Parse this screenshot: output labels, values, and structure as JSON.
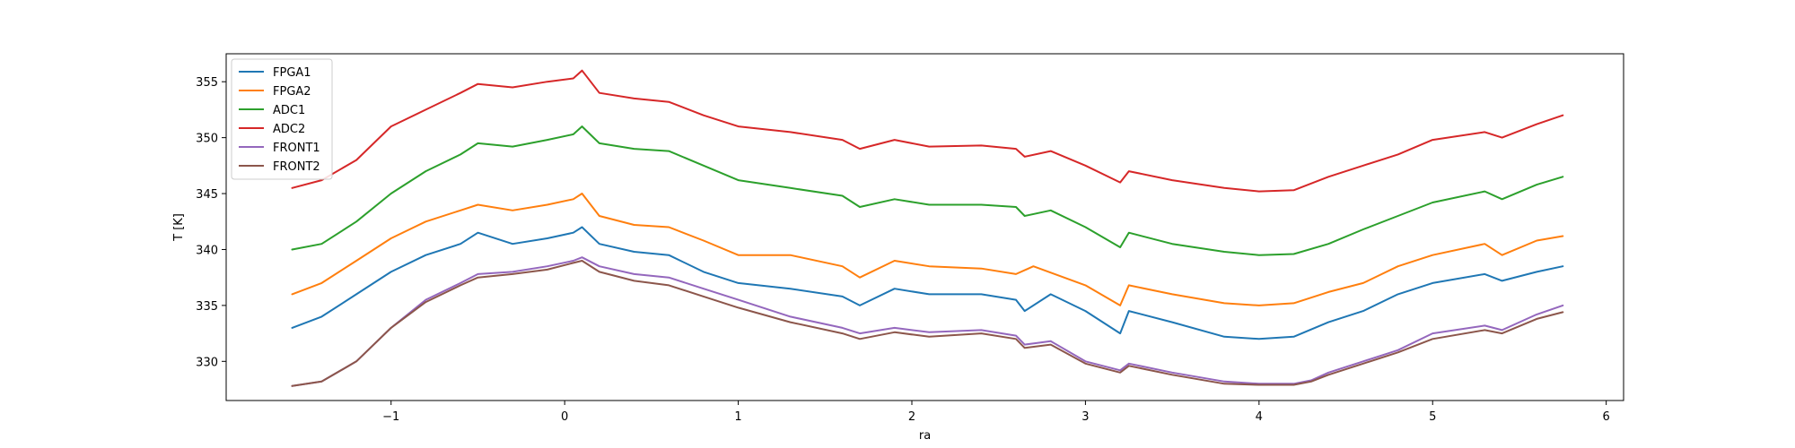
{
  "chart_data": {
    "type": "line",
    "title": "",
    "xlabel": "ra",
    "ylabel": "T [K]",
    "xlim": [
      -1.95,
      6.1
    ],
    "ylim": [
      326.5,
      357.5
    ],
    "xticks": [
      -1,
      0,
      1,
      2,
      3,
      4,
      5,
      6
    ],
    "yticks": [
      330,
      335,
      340,
      345,
      350,
      355
    ],
    "grid": false,
    "legend_position": "top-left",
    "series": [
      {
        "name": "FPGA1",
        "color": "#1f77b4",
        "points": [
          [
            -1.57,
            333.0
          ],
          [
            -1.4,
            334.0
          ],
          [
            -1.2,
            336.0
          ],
          [
            -1.0,
            338.0
          ],
          [
            -0.8,
            339.5
          ],
          [
            -0.6,
            340.5
          ],
          [
            -0.5,
            341.5
          ],
          [
            -0.3,
            340.5
          ],
          [
            -0.1,
            341.0
          ],
          [
            0.05,
            341.5
          ],
          [
            0.1,
            342.0
          ],
          [
            0.2,
            340.5
          ],
          [
            0.4,
            339.8
          ],
          [
            0.6,
            339.5
          ],
          [
            0.8,
            338.0
          ],
          [
            1.0,
            337.0
          ],
          [
            1.3,
            336.5
          ],
          [
            1.6,
            335.8
          ],
          [
            1.7,
            335.0
          ],
          [
            1.9,
            336.5
          ],
          [
            2.1,
            336.0
          ],
          [
            2.4,
            336.0
          ],
          [
            2.6,
            335.5
          ],
          [
            2.65,
            334.5
          ],
          [
            2.8,
            336.0
          ],
          [
            3.0,
            334.5
          ],
          [
            3.2,
            332.5
          ],
          [
            3.25,
            334.5
          ],
          [
            3.5,
            333.5
          ],
          [
            3.8,
            332.2
          ],
          [
            4.0,
            332.0
          ],
          [
            4.2,
            332.2
          ],
          [
            4.4,
            333.5
          ],
          [
            4.6,
            334.5
          ],
          [
            4.8,
            336.0
          ],
          [
            5.0,
            337.0
          ],
          [
            5.3,
            337.8
          ],
          [
            5.4,
            337.2
          ],
          [
            5.6,
            338.0
          ],
          [
            5.75,
            338.5
          ]
        ]
      },
      {
        "name": "FPGA2",
        "color": "#ff7f0e",
        "points": [
          [
            -1.57,
            336.0
          ],
          [
            -1.4,
            337.0
          ],
          [
            -1.2,
            339.0
          ],
          [
            -1.0,
            341.0
          ],
          [
            -0.8,
            342.5
          ],
          [
            -0.6,
            343.5
          ],
          [
            -0.5,
            344.0
          ],
          [
            -0.3,
            343.5
          ],
          [
            -0.1,
            344.0
          ],
          [
            0.05,
            344.5
          ],
          [
            0.1,
            345.0
          ],
          [
            0.2,
            343.0
          ],
          [
            0.4,
            342.2
          ],
          [
            0.6,
            342.0
          ],
          [
            0.8,
            340.8
          ],
          [
            1.0,
            339.5
          ],
          [
            1.3,
            339.5
          ],
          [
            1.6,
            338.5
          ],
          [
            1.7,
            337.5
          ],
          [
            1.9,
            339.0
          ],
          [
            2.1,
            338.5
          ],
          [
            2.4,
            338.3
          ],
          [
            2.6,
            337.8
          ],
          [
            2.7,
            338.5
          ],
          [
            3.0,
            336.8
          ],
          [
            3.2,
            335.0
          ],
          [
            3.25,
            336.8
          ],
          [
            3.5,
            336.0
          ],
          [
            3.8,
            335.2
          ],
          [
            4.0,
            335.0
          ],
          [
            4.2,
            335.2
          ],
          [
            4.4,
            336.2
          ],
          [
            4.6,
            337.0
          ],
          [
            4.8,
            338.5
          ],
          [
            5.0,
            339.5
          ],
          [
            5.3,
            340.5
          ],
          [
            5.4,
            339.5
          ],
          [
            5.6,
            340.8
          ],
          [
            5.75,
            341.2
          ]
        ]
      },
      {
        "name": "ADC1",
        "color": "#2ca02c",
        "points": [
          [
            -1.57,
            340.0
          ],
          [
            -1.4,
            340.5
          ],
          [
            -1.2,
            342.5
          ],
          [
            -1.0,
            345.0
          ],
          [
            -0.8,
            347.0
          ],
          [
            -0.6,
            348.5
          ],
          [
            -0.5,
            349.5
          ],
          [
            -0.3,
            349.2
          ],
          [
            -0.1,
            349.8
          ],
          [
            0.05,
            350.3
          ],
          [
            0.1,
            351.0
          ],
          [
            0.2,
            349.5
          ],
          [
            0.4,
            349.0
          ],
          [
            0.6,
            348.8
          ],
          [
            0.8,
            347.5
          ],
          [
            1.0,
            346.2
          ],
          [
            1.3,
            345.5
          ],
          [
            1.6,
            344.8
          ],
          [
            1.7,
            343.8
          ],
          [
            1.9,
            344.5
          ],
          [
            2.1,
            344.0
          ],
          [
            2.4,
            344.0
          ],
          [
            2.6,
            343.8
          ],
          [
            2.65,
            343.0
          ],
          [
            2.8,
            343.5
          ],
          [
            3.0,
            342.0
          ],
          [
            3.2,
            340.2
          ],
          [
            3.25,
            341.5
          ],
          [
            3.5,
            340.5
          ],
          [
            3.8,
            339.8
          ],
          [
            4.0,
            339.5
          ],
          [
            4.2,
            339.6
          ],
          [
            4.4,
            340.5
          ],
          [
            4.6,
            341.8
          ],
          [
            4.8,
            343.0
          ],
          [
            5.0,
            344.2
          ],
          [
            5.3,
            345.2
          ],
          [
            5.4,
            344.5
          ],
          [
            5.6,
            345.8
          ],
          [
            5.75,
            346.5
          ]
        ]
      },
      {
        "name": "ADC2",
        "color": "#d62728",
        "points": [
          [
            -1.57,
            345.5
          ],
          [
            -1.4,
            346.2
          ],
          [
            -1.2,
            348.0
          ],
          [
            -1.0,
            351.0
          ],
          [
            -0.8,
            352.5
          ],
          [
            -0.6,
            354.0
          ],
          [
            -0.5,
            354.8
          ],
          [
            -0.3,
            354.5
          ],
          [
            -0.1,
            355.0
          ],
          [
            0.05,
            355.3
          ],
          [
            0.1,
            356.0
          ],
          [
            0.2,
            354.0
          ],
          [
            0.4,
            353.5
          ],
          [
            0.6,
            353.2
          ],
          [
            0.8,
            352.0
          ],
          [
            1.0,
            351.0
          ],
          [
            1.3,
            350.5
          ],
          [
            1.6,
            349.8
          ],
          [
            1.7,
            349.0
          ],
          [
            1.9,
            349.8
          ],
          [
            2.1,
            349.2
          ],
          [
            2.4,
            349.3
          ],
          [
            2.6,
            349.0
          ],
          [
            2.65,
            348.3
          ],
          [
            2.8,
            348.8
          ],
          [
            3.0,
            347.5
          ],
          [
            3.2,
            346.0
          ],
          [
            3.25,
            347.0
          ],
          [
            3.5,
            346.2
          ],
          [
            3.8,
            345.5
          ],
          [
            4.0,
            345.2
          ],
          [
            4.2,
            345.3
          ],
          [
            4.4,
            346.5
          ],
          [
            4.6,
            347.5
          ],
          [
            4.8,
            348.5
          ],
          [
            5.0,
            349.8
          ],
          [
            5.3,
            350.5
          ],
          [
            5.4,
            350.0
          ],
          [
            5.6,
            351.2
          ],
          [
            5.75,
            352.0
          ]
        ]
      },
      {
        "name": "FRONT1",
        "color": "#9467bd",
        "points": [
          [
            -1.57,
            327.8
          ],
          [
            -1.4,
            328.2
          ],
          [
            -1.2,
            330.0
          ],
          [
            -1.0,
            333.0
          ],
          [
            -0.8,
            335.5
          ],
          [
            -0.6,
            337.0
          ],
          [
            -0.5,
            337.8
          ],
          [
            -0.3,
            338.0
          ],
          [
            -0.1,
            338.5
          ],
          [
            0.05,
            339.0
          ],
          [
            0.1,
            339.3
          ],
          [
            0.2,
            338.5
          ],
          [
            0.4,
            337.8
          ],
          [
            0.6,
            337.5
          ],
          [
            0.8,
            336.5
          ],
          [
            1.0,
            335.5
          ],
          [
            1.3,
            334.0
          ],
          [
            1.6,
            333.0
          ],
          [
            1.7,
            332.5
          ],
          [
            1.9,
            333.0
          ],
          [
            2.1,
            332.6
          ],
          [
            2.4,
            332.8
          ],
          [
            2.6,
            332.3
          ],
          [
            2.65,
            331.5
          ],
          [
            2.8,
            331.8
          ],
          [
            3.0,
            330.0
          ],
          [
            3.2,
            329.2
          ],
          [
            3.25,
            329.8
          ],
          [
            3.5,
            329.0
          ],
          [
            3.8,
            328.2
          ],
          [
            4.0,
            328.0
          ],
          [
            4.2,
            328.0
          ],
          [
            4.3,
            328.3
          ],
          [
            4.4,
            329.0
          ],
          [
            4.6,
            330.0
          ],
          [
            4.8,
            331.0
          ],
          [
            5.0,
            332.5
          ],
          [
            5.3,
            333.2
          ],
          [
            5.4,
            332.8
          ],
          [
            5.6,
            334.2
          ],
          [
            5.75,
            335.0
          ]
        ]
      },
      {
        "name": "FRONT2",
        "color": "#8c564b",
        "points": [
          [
            -1.57,
            327.8
          ],
          [
            -1.4,
            328.2
          ],
          [
            -1.2,
            330.0
          ],
          [
            -1.0,
            333.0
          ],
          [
            -0.8,
            335.3
          ],
          [
            -0.6,
            336.8
          ],
          [
            -0.5,
            337.5
          ],
          [
            -0.3,
            337.8
          ],
          [
            -0.1,
            338.2
          ],
          [
            0.05,
            338.8
          ],
          [
            0.1,
            339.0
          ],
          [
            0.2,
            338.0
          ],
          [
            0.4,
            337.2
          ],
          [
            0.6,
            336.8
          ],
          [
            0.8,
            335.8
          ],
          [
            1.0,
            334.8
          ],
          [
            1.3,
            333.5
          ],
          [
            1.6,
            332.5
          ],
          [
            1.7,
            332.0
          ],
          [
            1.9,
            332.6
          ],
          [
            2.1,
            332.2
          ],
          [
            2.4,
            332.5
          ],
          [
            2.6,
            332.0
          ],
          [
            2.65,
            331.2
          ],
          [
            2.8,
            331.5
          ],
          [
            3.0,
            329.8
          ],
          [
            3.2,
            329.0
          ],
          [
            3.25,
            329.6
          ],
          [
            3.5,
            328.8
          ],
          [
            3.8,
            328.0
          ],
          [
            4.0,
            327.9
          ],
          [
            4.2,
            327.9
          ],
          [
            4.3,
            328.2
          ],
          [
            4.4,
            328.8
          ],
          [
            4.6,
            329.8
          ],
          [
            4.8,
            330.8
          ],
          [
            5.0,
            332.0
          ],
          [
            5.3,
            332.8
          ],
          [
            5.4,
            332.5
          ],
          [
            5.6,
            333.8
          ],
          [
            5.75,
            334.4
          ]
        ]
      }
    ]
  }
}
